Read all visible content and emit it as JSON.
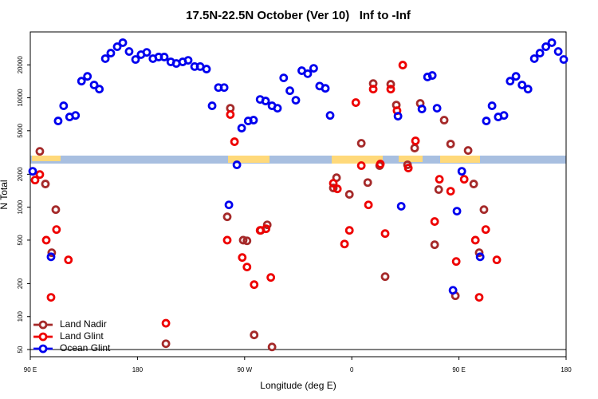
{
  "chart_data": {
    "type": "scatter",
    "title": "17.5N-22.5N October (Ver 10)   Inf to -Inf",
    "x_label": "Longitude (deg E)",
    "y_label": "N Total",
    "log_y": true,
    "legend": "bottom-left",
    "reference_line": 50,
    "xlim": [
      90,
      540
    ],
    "ylim": [
      43,
      40000
    ],
    "xticks": [
      {
        "value": 90,
        "label": "90 E"
      },
      180,
      {
        "value": 270,
        "label": "90 W"
      },
      {
        "value": 360,
        "label": "0"
      },
      {
        "value": 450,
        "label": "90 E"
      },
      {
        "value": 540,
        "label": "180"
      }
    ],
    "yticks": [
      50,
      100,
      200,
      500,
      1000,
      2000,
      5000,
      10000,
      20000
    ],
    "series": [
      {
        "name": "Land Nadir",
        "color": "#a52a2a",
        "x": [
          98,
          102.7,
          108,
          111.4,
          203.9,
          255.4,
          258,
          268.8,
          272,
          278,
          283.6,
          289,
          293,
          344.5,
          347.2,
          358,
          368,
          373.4,
          378,
          383.4,
          388,
          392.7,
          397.4,
          406.8,
          412.8,
          417.5,
          429.6,
          433,
          437.6,
          443,
          447,
          457.7,
          462.4,
          467,
          471
        ],
        "values": [
          3240,
          1630,
          384,
          950,
          56.5,
          817,
          8030,
          500,
          493,
          68,
          614,
          690,
          52.8,
          1500,
          1860,
          1310,
          3840,
          1680,
          13500,
          2400,
          232,
          13300,
          8590,
          2440,
          3470,
          8890,
          454,
          1450,
          6250,
          3780,
          155,
          3300,
          1630,
          384,
          950
        ]
      },
      {
        "name": "Land Glint",
        "color": "#ee0000",
        "x": [
          94,
          98,
          103.4,
          107.4,
          112,
          122,
          203.9,
          255.4,
          258,
          261.5,
          268,
          272,
          278,
          283,
          288,
          292,
          344.5,
          347.9,
          353.9,
          358,
          363.4,
          368,
          374,
          378,
          384,
          388,
          392.7,
          398,
          402.8,
          407.5,
          413.5,
          429.6,
          433.6,
          443,
          447.7,
          454.4,
          463.8,
          467,
          472.5,
          481.8
        ],
        "values": [
          1770,
          1990,
          500,
          150,
          625,
          330,
          87,
          500,
          7030,
          3970,
          347,
          284,
          196,
          614,
          635,
          228,
          1655,
          1470,
          461,
          614,
          9040,
          2400,
          1050,
          12000,
          2480,
          574,
          12000,
          7630,
          19900,
          2280,
          4040,
          740,
          1800,
          1400,
          319,
          1800,
          500,
          150,
          625,
          330
        ]
      },
      {
        "name": "Ocean Glint",
        "color": "#0000ee",
        "x": [
          92,
          107.4,
          113.4,
          118,
          123,
          128,
          133,
          138,
          143.6,
          148,
          153,
          157.6,
          163,
          167.7,
          173,
          178.4,
          183,
          187.8,
          193,
          197.8,
          202.5,
          208,
          212.6,
          218,
          222.6,
          228,
          232.7,
          238,
          242.7,
          248,
          252.8,
          256.8,
          263.5,
          267.5,
          273,
          277.5,
          283,
          287.6,
          293,
          297.6,
          302.8,
          308,
          313,
          318,
          323,
          328,
          333,
          337.8,
          341.8,
          398.8,
          401.5,
          418.9,
          423.6,
          427.6,
          431.6,
          445,
          448.3,
          452.4,
          467.8,
          473,
          477.8,
          483,
          487.8,
          493,
          497.9,
          503,
          508,
          513.3,
          518,
          523,
          528,
          533.4,
          538
        ],
        "values": [
          2130,
          352,
          6140,
          8450,
          6680,
          6900,
          14200,
          15700,
          13100,
          12000,
          22800,
          25600,
          29300,
          31900,
          26500,
          22400,
          24800,
          26000,
          22800,
          23600,
          23600,
          21300,
          20600,
          21300,
          22000,
          19300,
          19300,
          18300,
          8450,
          12400,
          12400,
          1050,
          2440,
          5280,
          6140,
          6250,
          9660,
          9350,
          8450,
          8030,
          15200,
          11600,
          9500,
          17700,
          16600,
          18600,
          12800,
          12200,
          6900,
          6790,
          1020,
          7900,
          15500,
          16000,
          8030,
          174,
          920,
          2130,
          352,
          6140,
          8450,
          6680,
          6900,
          14200,
          15700,
          13100,
          12000,
          22800,
          25600,
          29300,
          31900,
          26500,
          22400
        ]
      }
    ]
  }
}
